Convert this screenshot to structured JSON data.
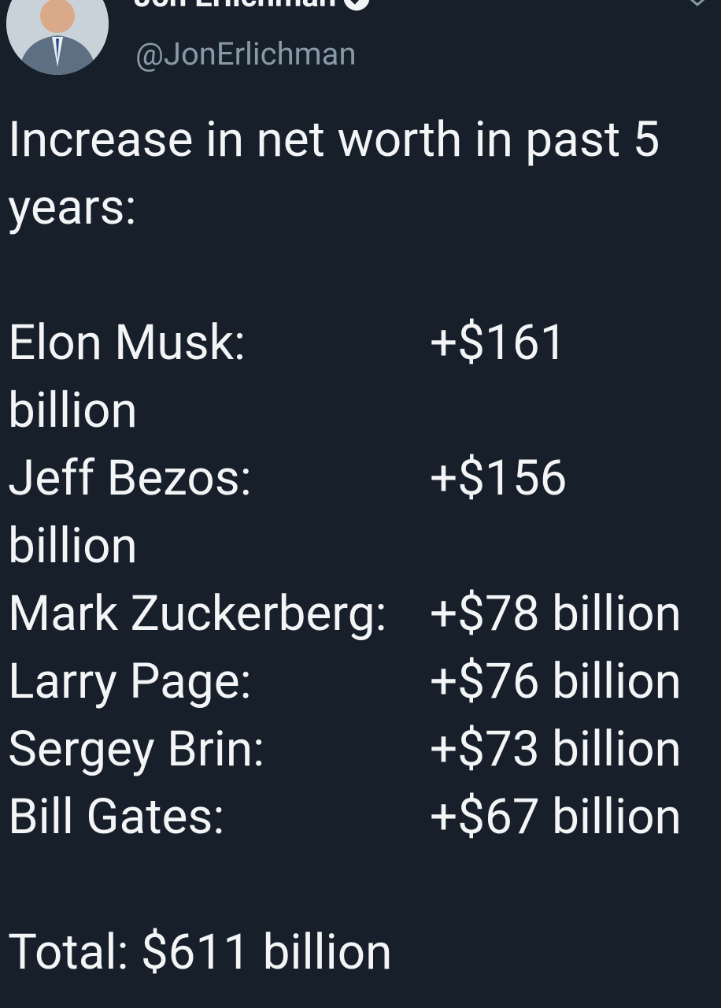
{
  "header": {
    "name": "Jon Erlichman",
    "handle": "@JonErlichman"
  },
  "tweet": {
    "intro": "Increase in net worth in past 5 years:",
    "entries": [
      {
        "name": "Elon Musk:",
        "value": "+$161 billion"
      },
      {
        "name": "Jeff Bezos:",
        "value": "+$156 billion"
      },
      {
        "name": "Mark Zuckerberg:",
        "value": "+$78 billion"
      },
      {
        "name": "Larry Page:",
        "value": "+$76 billion"
      },
      {
        "name": "Sergey Brin:",
        "value": "+$73 billion"
      },
      {
        "name": "Bill Gates:",
        "value": "+$67 billion"
      }
    ],
    "total": "Total: $611 billion"
  }
}
